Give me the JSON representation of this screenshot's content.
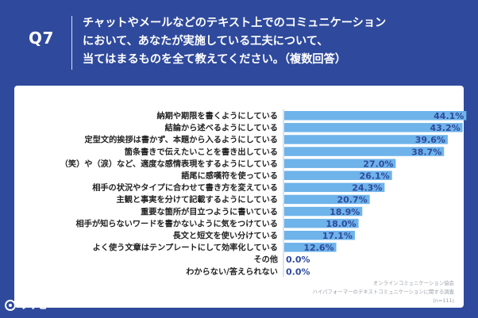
{
  "header": {
    "qnum": "Q7",
    "title_lines": [
      "チャットやメールなどのテキスト上でのコミュニケーション",
      "において、あなたが実施している工夫について、",
      "当てはまるものを全て教えてください。（複数回答）"
    ]
  },
  "note": {
    "lines": [
      "オンラインコミュニケーション協会",
      "ハイパフォーマーのテキストコミュニケーションに関する調査",
      "(n=111)"
    ]
  },
  "logo": {
    "text": "リサピー"
  },
  "colors": {
    "bar": "#6eb3ea",
    "value": "#2f4a9c",
    "bg": "#2f4a9c"
  },
  "chart_data": {
    "type": "bar",
    "orientation": "horizontal",
    "title": "",
    "xlabel": "",
    "ylabel": "",
    "xlim": [
      0,
      50
    ],
    "categories": [
      "納期や期限を書くようにしている",
      "結論から述べるようにしている",
      "定型文的挨拶は書かず、本題から入るようにしている",
      "箇条書きで伝えたいことを書き出している",
      "（笑）や（涙）など、適度な感情表現をするようにしている",
      "語尾に感嘆符を使っている",
      "相手の状況やタイプに合わせて書き方を変えている",
      "主観と事実を分けて記載するようにしている",
      "重要な箇所が目立つように書いている",
      "相手が知らないワードを書かないように気をつけている",
      "長文と短文を使い分けている",
      "よく使う文章はテンプレートにして効率化している",
      "その他",
      "わからない/答えられない"
    ],
    "values": [
      44.1,
      43.2,
      39.6,
      38.7,
      27.0,
      26.1,
      24.3,
      20.7,
      18.9,
      18.0,
      17.1,
      12.6,
      0.0,
      0.0
    ],
    "labels": [
      "44.1%",
      "43.2%",
      "39.6%",
      "38.7%",
      "27.0%",
      "26.1%",
      "24.3%",
      "20.7%",
      "18.9%",
      "18.0%",
      "17.1%",
      "12.6%",
      "0.0%",
      "0.0%"
    ]
  }
}
